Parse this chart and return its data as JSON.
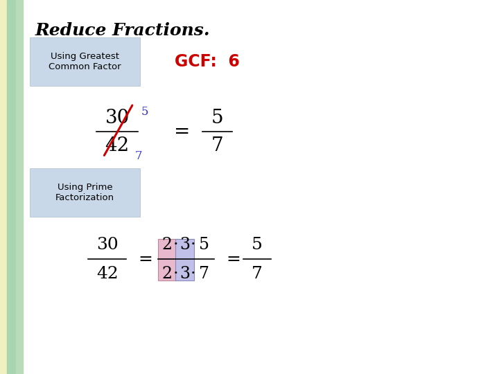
{
  "title": "Reduce Fractions.",
  "bg_color": "#ffffff",
  "left_stripe_colors": [
    "#f0f0c0",
    "#a8d4b0",
    "#b8dcb8"
  ],
  "box1_label": "Using Greatest\nCommon Factor",
  "box_color": "#c8d8e8",
  "gcf_text": "GCF:  6",
  "gcf_color": "#cc0000",
  "strike_color": "#cc0000",
  "small5_color": "#3333cc",
  "small7_color": "#3333cc",
  "box2a_color": "#e8b8cc",
  "box2b_color": "#c0c0e8",
  "box2_label": "Using Prime\nFactorization"
}
